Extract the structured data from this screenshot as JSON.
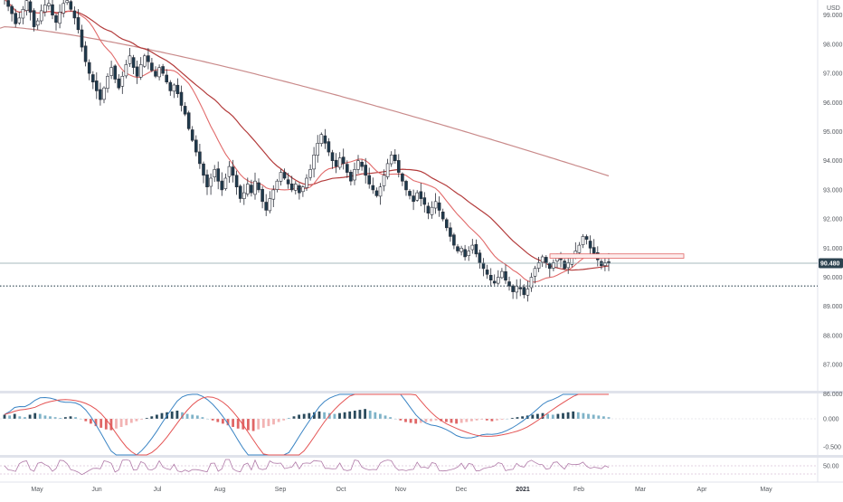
{
  "currency": "USD",
  "colors": {
    "up": "#1e3a4c",
    "down": "#1e3a4c",
    "wick": "#2a2e39",
    "ma_fast": "#e16a6a",
    "ma_mid": "#b33b3b",
    "ma_slow": "#c98a8a",
    "last_price_tag": "#2d4350",
    "macd_pos": "#2a4a5c",
    "macd_pos_light": "#7fb3c8",
    "macd_neg": "#e06666",
    "macd_neg_light": "#f2b3b3",
    "macd_line": "#3a84c4",
    "signal_line": "#e45353",
    "rsi_line": "#b07aa8",
    "zone": "#e06666"
  },
  "price_axis": {
    "labels": [
      "99.000",
      "98.000",
      "97.000",
      "96.000",
      "95.000",
      "94.000",
      "93.000",
      "92.000",
      "91.000",
      "90.000",
      "89.000",
      "88.000",
      "87.000",
      "86.000"
    ],
    "values": [
      99,
      98,
      97,
      96,
      95,
      94,
      93,
      92,
      91,
      90,
      89,
      88,
      87,
      86
    ]
  },
  "last_price": {
    "value": 90.48,
    "label": "90.480"
  },
  "support_level": 89.7,
  "resistance_zone": [
    90.65,
    90.8
  ],
  "macd_axis": {
    "labels": [
      "0.000",
      "-0.500"
    ],
    "values": [
      0,
      -0.5
    ]
  },
  "rsi_axis": {
    "labels": [
      "50.00"
    ],
    "values": [
      50
    ]
  },
  "time_axis": {
    "labels": [
      "May",
      "Jun",
      "Jul",
      "Aug",
      "Sep",
      "Oct",
      "Nov",
      "Dec",
      "2021",
      "Feb",
      "Mar",
      "Apr",
      "May"
    ],
    "bold_index": 8
  },
  "chart_data": {
    "type": "candlestick",
    "currency": "USD",
    "closes": [
      99.55,
      99.3,
      99.05,
      98.7,
      98.9,
      99.2,
      99.5,
      99.1,
      98.6,
      98.8,
      99.15,
      99.35,
      99.4,
      99.0,
      98.75,
      99.1,
      99.4,
      99.5,
      99.2,
      98.9,
      98.5,
      97.9,
      97.4,
      97.0,
      96.7,
      96.4,
      96.1,
      96.5,
      96.9,
      97.2,
      96.8,
      96.5,
      96.9,
      97.3,
      97.6,
      97.2,
      96.9,
      97.3,
      97.6,
      97.4,
      97.1,
      96.9,
      97.2,
      97.0,
      96.7,
      96.4,
      96.6,
      96.3,
      95.9,
      95.6,
      95.1,
      94.7,
      94.3,
      93.9,
      93.5,
      93.1,
      93.4,
      93.7,
      93.3,
      93.0,
      93.4,
      93.8,
      93.5,
      93.1,
      92.7,
      92.9,
      93.2,
      92.9,
      93.3,
      93.0,
      92.6,
      92.3,
      92.7,
      93.0,
      93.3,
      93.6,
      93.4,
      93.2,
      93.0,
      93.2,
      92.9,
      93.1,
      93.4,
      93.7,
      94.2,
      94.6,
      94.9,
      94.6,
      94.3,
      94.0,
      93.8,
      94.1,
      93.9,
      93.6,
      93.3,
      93.7,
      94.0,
      93.8,
      93.5,
      93.2,
      93.0,
      92.8,
      93.1,
      93.5,
      93.9,
      94.2,
      94.0,
      93.6,
      93.3,
      93.0,
      92.8,
      92.6,
      92.9,
      92.7,
      92.5,
      92.2,
      92.4,
      92.6,
      92.3,
      92.0,
      91.7,
      91.4,
      91.1,
      90.9,
      91.0,
      90.7,
      90.9,
      91.1,
      90.8,
      90.5,
      90.3,
      90.1,
      89.9,
      89.8,
      90.0,
      90.2,
      89.9,
      89.7,
      89.5,
      89.7,
      89.6,
      89.4,
      89.6,
      90.0,
      90.3,
      90.5,
      90.7,
      90.5,
      90.3,
      90.5,
      90.7,
      90.6,
      90.3,
      90.5,
      90.7,
      90.9,
      91.1,
      91.4,
      91.3,
      91.0,
      90.8,
      90.6,
      90.4,
      90.5,
      90.48
    ],
    "macd_histogram": [
      0.05,
      0.04,
      0.06,
      0.03,
      0.02,
      0.05,
      0.07,
      0.06,
      0.04,
      0.03,
      0.02,
      0.01,
      0.02,
      0.03,
      0.02,
      0.0,
      -0.03,
      -0.06,
      -0.09,
      -0.11,
      -0.13,
      -0.14,
      -0.12,
      -0.1,
      -0.08,
      -0.05,
      -0.03,
      -0.01,
      0.01,
      0.03,
      0.05,
      0.07,
      0.08,
      0.09,
      0.1,
      0.08,
      0.06,
      0.05,
      0.04,
      0.02,
      0.0,
      -0.02,
      -0.04,
      -0.06,
      -0.08,
      -0.1,
      -0.12,
      -0.13,
      -0.14,
      -0.15,
      -0.13,
      -0.11,
      -0.09,
      -0.07,
      -0.04,
      -0.02,
      0.01,
      0.03,
      0.05,
      0.06,
      0.07,
      0.08,
      0.09,
      0.08,
      0.07,
      0.06,
      0.07,
      0.08,
      0.09,
      0.1,
      0.11,
      0.12,
      0.1,
      0.08,
      0.06,
      0.04,
      0.02,
      0.0,
      -0.02,
      -0.04,
      -0.05,
      -0.06,
      -0.05,
      -0.04,
      -0.03,
      -0.02,
      -0.03,
      -0.04,
      -0.05,
      -0.06,
      -0.05,
      -0.04,
      -0.03,
      -0.02,
      -0.01,
      -0.02,
      -0.03,
      -0.02,
      -0.01,
      0.0,
      0.01,
      0.02,
      0.03,
      0.04,
      0.05,
      0.06,
      0.07,
      0.06,
      0.05,
      0.06,
      0.07,
      0.08,
      0.09,
      0.08,
      0.07,
      0.06,
      0.05,
      0.04,
      0.03,
      0.02
    ]
  }
}
